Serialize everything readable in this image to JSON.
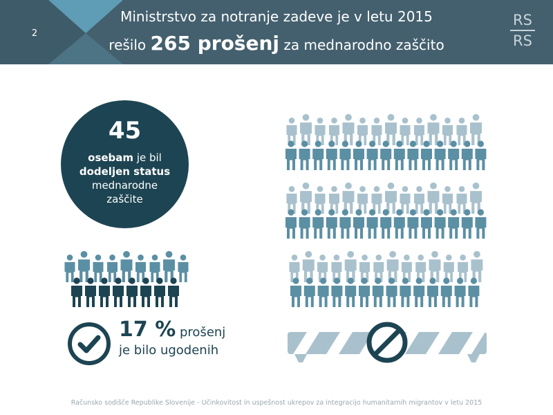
{
  "slide": {
    "page_number": "2",
    "title_line1": "Ministrstvo za notranje zadeve je v letu 2015",
    "title_line2_prefix": "rešilo",
    "title_line2_number": "265 prošenj",
    "title_line2_suffix": "za mednarodno zaščito",
    "logo_top": "RS",
    "logo_bottom": "RS"
  },
  "status_granted": {
    "number": "45",
    "line1_bold": "osebam",
    "line1_rest": "je bil",
    "line2_bold": "dodeljen status",
    "line3": "mednarodne",
    "line4": "zaščite"
  },
  "approved": {
    "percent": "17 %",
    "text_after_percent": "prošenj",
    "line2": "je bilo ugodenih"
  },
  "footer": {
    "text": "Računsko sodišče Republike Slovenije - Učinkovitost in uspešnost ukrepov za integracijo humanitarnih migrantov v letu 2015"
  },
  "colors": {
    "header": "#44606e",
    "dark": "#1d4452",
    "people_back": "#a9c1cd",
    "people_front": "#5b8fa4",
    "people_dark": "#1d4452",
    "header_triangle": "#5f9cb5"
  },
  "icons": {
    "granted_people": "person-icon",
    "rejected_people": "person-icon",
    "approved": "checkmark-icon",
    "rejected": "prohibited-icon",
    "barrier": "barrier-icon"
  }
}
